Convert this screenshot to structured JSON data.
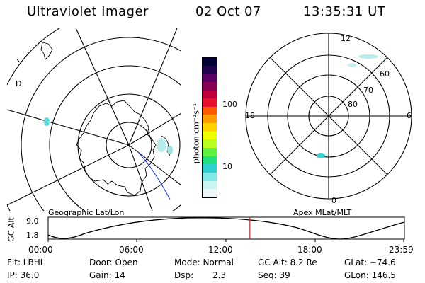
{
  "header": {
    "instrument": "Ultraviolet Imager",
    "date": "02 Oct 07",
    "time": "13:35:31 UT"
  },
  "left_panel": {
    "caption": "Geographic Lat/Lon",
    "corner_label": "D"
  },
  "colorbar": {
    "unit_label": "photon cm⁻²s⁻¹",
    "tick_labels": [
      "100",
      "10"
    ],
    "colors": [
      "#000033",
      "#200050",
      "#580066",
      "#880055",
      "#c0003a",
      "#e8102a",
      "#ff5a00",
      "#ff9a00",
      "#ffd200",
      "#f0ff00",
      "#b8ff20",
      "#60f040",
      "#20e080",
      "#30d0d0",
      "#80e8e8",
      "#c8f4f4",
      "#eef8f8"
    ]
  },
  "right_panel": {
    "caption": "Apex MLat/MLT",
    "mlt_labels": {
      "top": "12",
      "left": "18",
      "right": "6",
      "bottom": "0"
    },
    "mlat_labels": [
      "60",
      "70",
      "80"
    ]
  },
  "timeline": {
    "axis_label": "GC Alt",
    "y_ticks": [
      "9.0",
      "1.8"
    ],
    "x_ticks": [
      "00:00",
      "06:00",
      "12:00",
      "18:00",
      "23:59"
    ],
    "current_fraction": 0.5663
  },
  "status": {
    "flt": "Flt: LBHL",
    "ip": "IP: 36.0",
    "door": "Door: Open",
    "gain": "Gain: 14",
    "mode": "Mode: Normal",
    "dsp_label": "Dsp:",
    "dsp_value": "2.3",
    "gc_alt": "GC Alt: 8.2 Re",
    "seq": "Seq: 39",
    "glat": "GLat: −74.6",
    "glon": "GLon: 146.5"
  }
}
